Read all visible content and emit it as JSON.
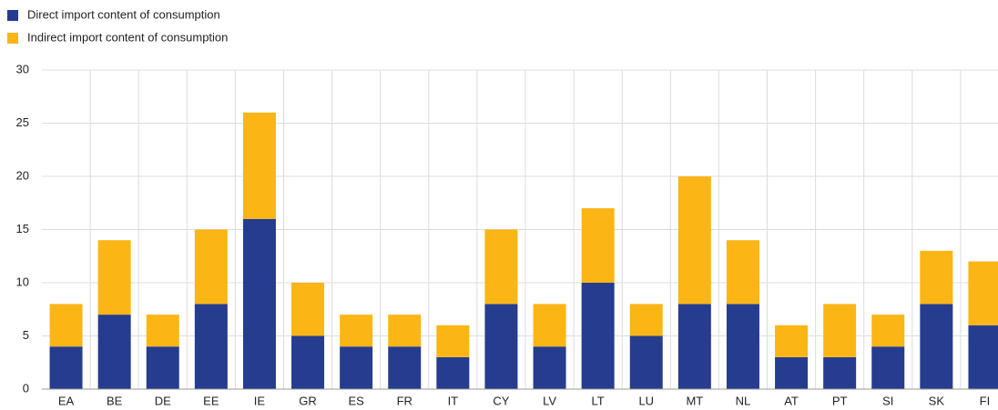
{
  "chart_data": {
    "type": "stacked_bar",
    "categories": [
      "EA",
      "BE",
      "DE",
      "EE",
      "IE",
      "GR",
      "ES",
      "FR",
      "IT",
      "CY",
      "LV",
      "LT",
      "LU",
      "MT",
      "NL",
      "AT",
      "PT",
      "SI",
      "SK",
      "FI"
    ],
    "series": [
      {
        "name": "Direct import content of consumption",
        "color": "#263c8f",
        "values": [
          4,
          7,
          4,
          8,
          16,
          5,
          4,
          4,
          3,
          8,
          4,
          10,
          5,
          8,
          8,
          3,
          3,
          4,
          8,
          6
        ]
      },
      {
        "name": "Indirect import content of consumption",
        "color": "#fbb515",
        "values": [
          4,
          7,
          3,
          7,
          10,
          5,
          3,
          3,
          3,
          7,
          4,
          7,
          3,
          12,
          6,
          3,
          5,
          3,
          5,
          6
        ]
      }
    ],
    "ylim": [
      0,
      30
    ],
    "yticks": [
      0,
      5,
      10,
      15,
      20,
      25,
      30
    ],
    "grid": true,
    "legend": "top-left"
  }
}
